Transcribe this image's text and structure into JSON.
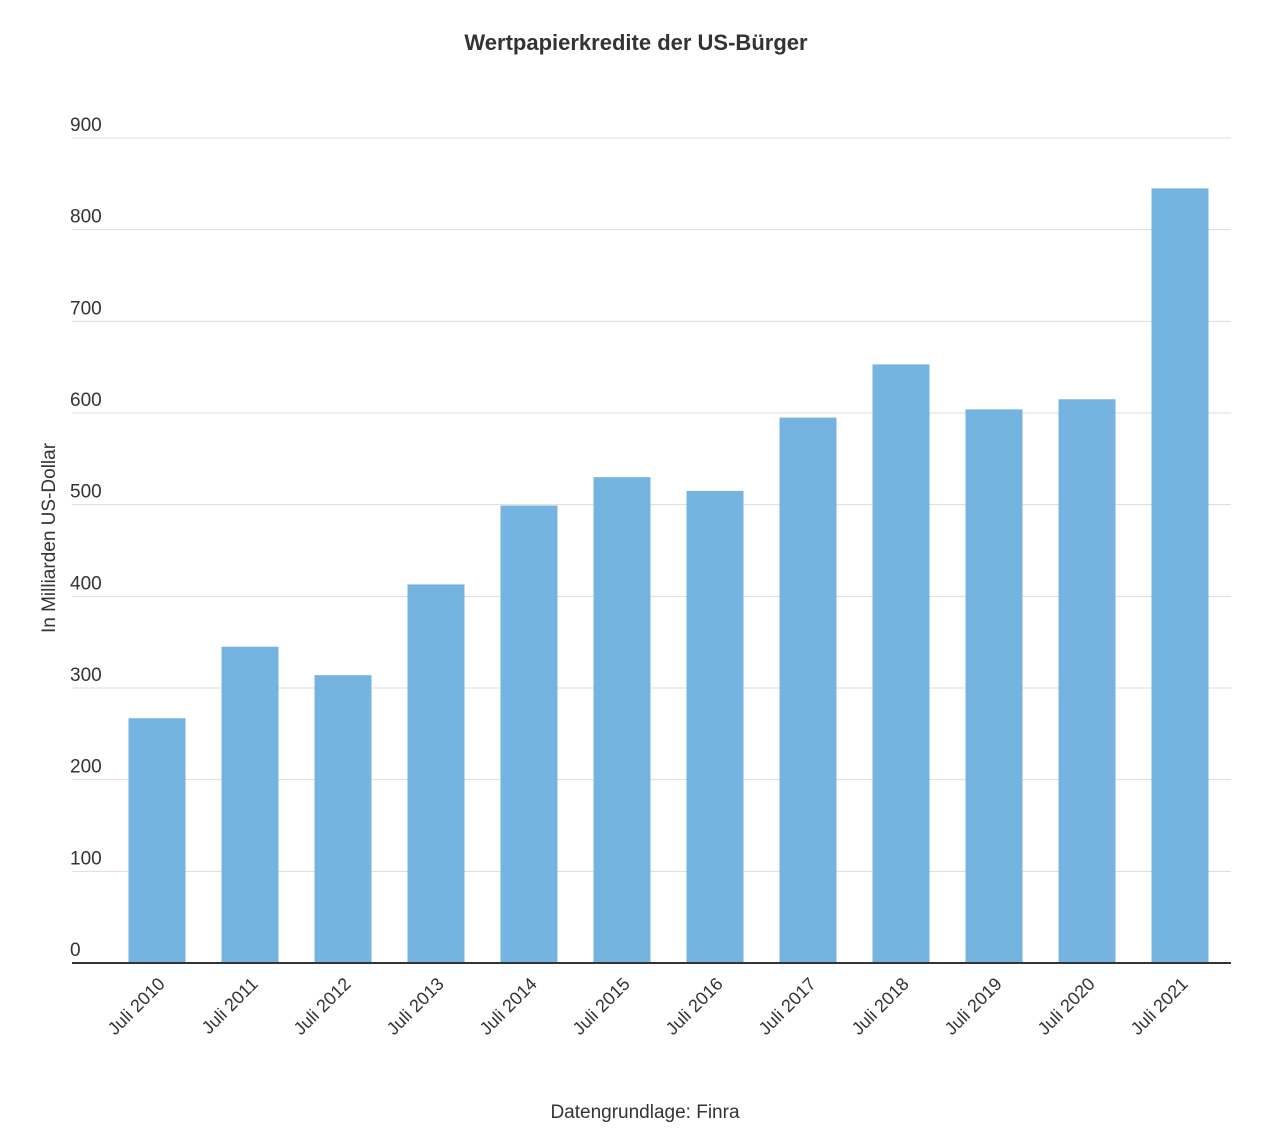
{
  "chart_data": {
    "type": "bar",
    "title": "Wertpapierkredite der US-Bürger",
    "ylabel": "In Milliarden US-Dollar",
    "xlabel": "",
    "source": "Datengrundlage: Finra",
    "categories": [
      "Juli 2010",
      "Juli 2011",
      "Juli 2012",
      "Juli 2013",
      "Juli 2014",
      "Juli 2015",
      "Juli 2016",
      "Juli 2017",
      "Juli 2018",
      "Juli 2019",
      "Juli 2020",
      "Juli 2021"
    ],
    "values": [
      267,
      345,
      314,
      413,
      499,
      530,
      515,
      595,
      653,
      604,
      615,
      845
    ],
    "ylim": [
      0,
      900
    ],
    "yticks": [
      0,
      100,
      200,
      300,
      400,
      500,
      600,
      700,
      800,
      900
    ],
    "grid": true,
    "bar_color": "#75b4e0"
  }
}
